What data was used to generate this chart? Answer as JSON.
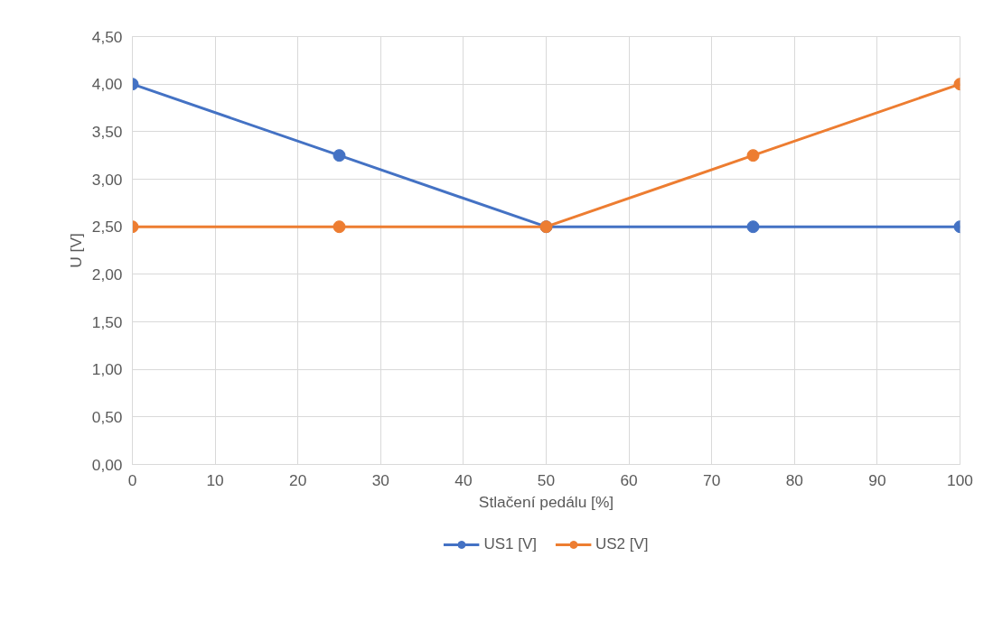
{
  "chart_data": {
    "type": "line",
    "xlabel": "Stlačení pedálu [%]",
    "ylabel": "U [V]",
    "x": [
      0,
      25,
      50,
      75,
      100
    ],
    "series": [
      {
        "name": "US1 [V]",
        "color": "#4472c4",
        "values": [
          4.0,
          3.25,
          2.5,
          2.5,
          2.5
        ]
      },
      {
        "name": "US2 [V]",
        "color": "#ed7d31",
        "values": [
          2.5,
          2.5,
          2.5,
          3.25,
          4.0
        ]
      }
    ],
    "xlim": [
      0,
      100
    ],
    "xticks": [
      0,
      10,
      20,
      30,
      40,
      50,
      60,
      70,
      80,
      90,
      100
    ],
    "ylim": [
      0,
      4.5
    ],
    "yticks": [
      {
        "value": 0,
        "label": "0,00"
      },
      {
        "value": 0.5,
        "label": "0,50"
      },
      {
        "value": 1,
        "label": "1,00"
      },
      {
        "value": 1.5,
        "label": "1,50"
      },
      {
        "value": 2,
        "label": "2,00"
      },
      {
        "value": 2.5,
        "label": "2,50"
      },
      {
        "value": 3,
        "label": "3,00"
      },
      {
        "value": 3.5,
        "label": "3,50"
      },
      {
        "value": 4,
        "label": "4,00"
      },
      {
        "value": 4.5,
        "label": "4,50"
      }
    ],
    "grid": true,
    "legend": "bottom",
    "marker": "circle",
    "line_style": "solid"
  }
}
